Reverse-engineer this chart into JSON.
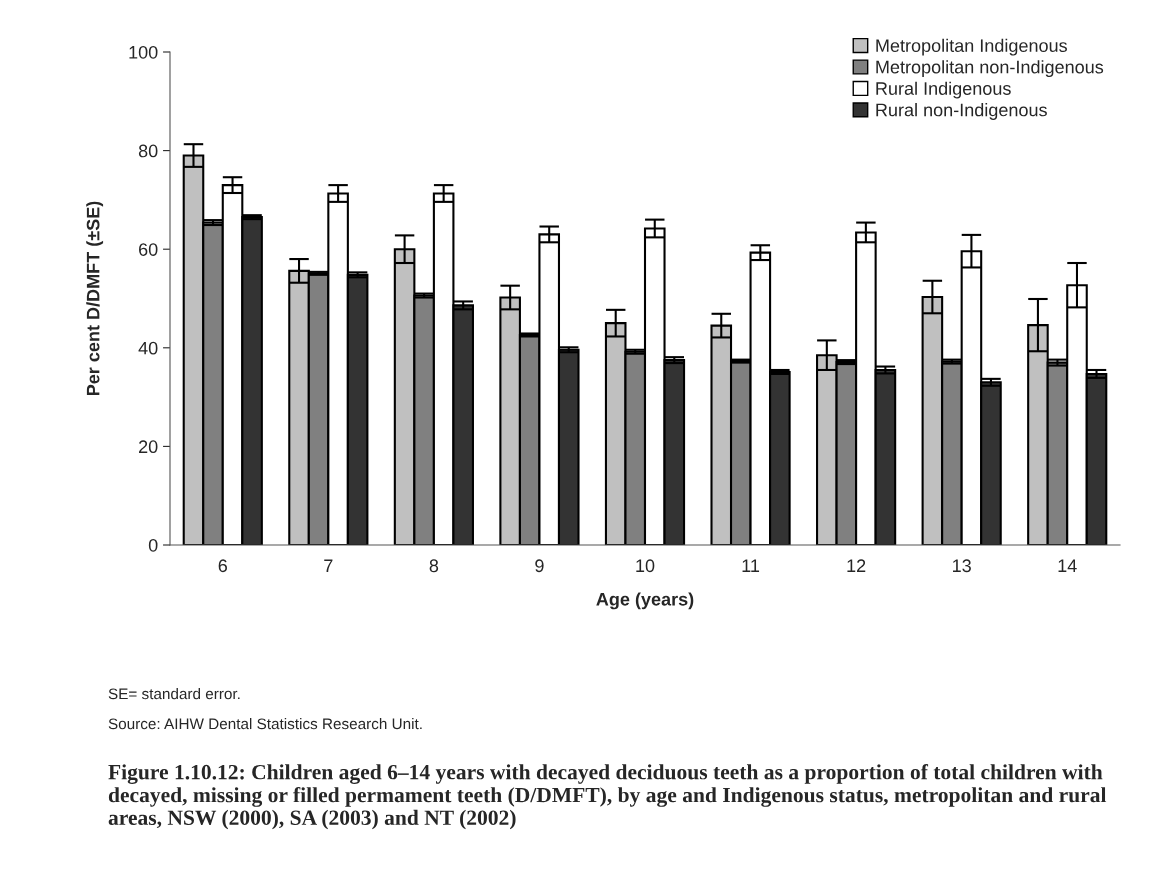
{
  "chart_data": {
    "type": "bar",
    "ylabel": "Per cent D/DMFT (±SE)",
    "xlabel": "Age (years)",
    "categories": [
      "6",
      "7",
      "8",
      "9",
      "10",
      "11",
      "12",
      "13",
      "14"
    ],
    "series": [
      {
        "name": "Metropolitan Indigenous",
        "color": "#c0c0c0",
        "values": [
          79,
          55.6,
          60,
          50.2,
          45,
          44.5,
          38.5,
          50.3,
          44.6
        ],
        "errors": [
          2.3,
          2.4,
          2.8,
          2.4,
          2.7,
          2.4,
          3,
          3.3,
          5.3
        ]
      },
      {
        "name": "Metropolitan non-Indigenous",
        "color": "#808080",
        "values": [
          65.4,
          55.1,
          50.6,
          42.6,
          39.2,
          37.3,
          37.1,
          37.2,
          37
        ],
        "errors": [
          0.5,
          0.3,
          0.4,
          0.3,
          0.4,
          0.3,
          0.4,
          0.4,
          0.6
        ]
      },
      {
        "name": "Rural Indigenous",
        "color": "#ffffff",
        "values": [
          73,
          71.3,
          71.3,
          63,
          64.2,
          59.3,
          63.4,
          59.6,
          52.7
        ],
        "errors": [
          1.6,
          1.7,
          1.7,
          1.6,
          1.8,
          1.5,
          2,
          3.3,
          4.5
        ]
      },
      {
        "name": "Rural non-Indigenous",
        "color": "#333333",
        "values": [
          66.5,
          54.8,
          48.6,
          39.6,
          37.5,
          35.1,
          35.5,
          33,
          34.7
        ],
        "errors": [
          0.4,
          0.5,
          0.8,
          0.5,
          0.6,
          0.4,
          0.7,
          0.7,
          0.8
        ]
      }
    ],
    "ylim": [
      0,
      100
    ],
    "yticks": [
      0,
      20,
      40,
      60,
      80,
      100
    ],
    "grid": false,
    "legend": "top right",
    "annotations": [
      "SE= standard error.",
      "Source: AIHW Dental Statistics Research Unit.",
      "Figure 1.10.12: Children aged 6–14 years with decayed deciduous teeth as a proportion of total children with decayed, missing or filled permament teeth (D/DMFT), by age and Indigenous status, metropolitan and rural areas, NSW (2000), SA (2003) and NT (2002)"
    ]
  }
}
